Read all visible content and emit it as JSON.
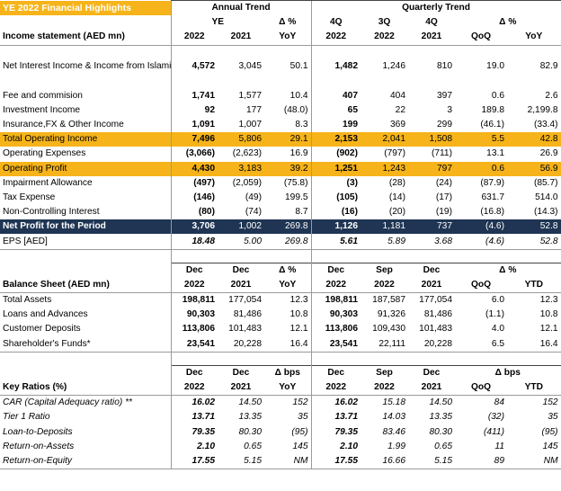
{
  "title": "YE 2022 Financial Highlights",
  "annual_trend": "Annual Trend",
  "quarterly_trend": "Quarterly Trend",
  "ye": "YE",
  "delta_pct": "Δ %",
  "delta_bps": "Δ bps",
  "h_4q": "4Q",
  "h_3q": "3Q",
  "h_dec": "Dec",
  "h_sep": "Sep",
  "h_2022": "2022",
  "h_2021": "2021",
  "h_yoy": "YoY",
  "h_qoq": "QoQ",
  "h_ytd": "YTD",
  "income_header": "Income statement (AED mn)",
  "income_rows": [
    {
      "label": "Net Interest Income & Income from Islamic Financing",
      "v": [
        "4,572",
        "3,045",
        "50.1",
        "1,482",
        "1,246",
        "810",
        "19.0",
        "82.9"
      ]
    },
    {
      "label": "Fee and commision",
      "v": [
        "1,741",
        "1,577",
        "10.4",
        "407",
        "404",
        "397",
        "0.6",
        "2.6"
      ]
    },
    {
      "label": "Investment Income",
      "v": [
        "92",
        "177",
        "(48.0)",
        "65",
        "22",
        "3",
        "189.8",
        "2,199.8"
      ]
    },
    {
      "label": "Insurance,FX & Other Income",
      "v": [
        "1,091",
        "1,007",
        "8.3",
        "199",
        "369",
        "299",
        "(46.1)",
        "(33.4)"
      ]
    },
    {
      "label": "Total Operating Income",
      "v": [
        "7,496",
        "5,806",
        "29.1",
        "2,153",
        "2,041",
        "1,508",
        "5.5",
        "42.8"
      ]
    },
    {
      "label": "Operating Expenses",
      "v": [
        "(3,066)",
        "(2,623)",
        "16.9",
        "(902)",
        "(797)",
        "(711)",
        "13.1",
        "26.9"
      ]
    },
    {
      "label": "Operating Profit",
      "v": [
        "4,430",
        "3,183",
        "39.2",
        "1,251",
        "1,243",
        "797",
        "0.6",
        "56.9"
      ]
    },
    {
      "label": "Impairment Allowance",
      "v": [
        "(497)",
        "(2,059)",
        "(75.8)",
        "(3)",
        "(28)",
        "(24)",
        "(87.9)",
        "(85.7)"
      ]
    },
    {
      "label": "Tax Expense",
      "v": [
        "(146)",
        "(49)",
        "199.5",
        "(105)",
        "(14)",
        "(17)",
        "631.7",
        "514.0"
      ]
    },
    {
      "label": "Non-Controlling Interest",
      "v": [
        "(80)",
        "(74)",
        "8.7",
        "(16)",
        "(20)",
        "(19)",
        "(16.8)",
        "(14.3)"
      ]
    },
    {
      "label": "Net Profit for the Period",
      "v": [
        "3,706",
        "1,002",
        "269.8",
        "1,126",
        "1,181",
        "737",
        "(4.6)",
        "52.8"
      ]
    },
    {
      "label": "EPS [AED]",
      "v": [
        "18.48",
        "5.00",
        "269.8",
        "5.61",
        "5.89",
        "3.68",
        "(4.6)",
        "52.8"
      ]
    }
  ],
  "balance_header": "Balance Sheet (AED mn)",
  "balance_rows": [
    {
      "label": "Total Assets",
      "v": [
        "198,811",
        "177,054",
        "12.3",
        "198,811",
        "187,587",
        "177,054",
        "6.0",
        "12.3"
      ]
    },
    {
      "label": "Loans and Advances",
      "v": [
        "90,303",
        "81,486",
        "10.8",
        "90,303",
        "91,326",
        "81,486",
        "(1.1)",
        "10.8"
      ]
    },
    {
      "label": "Customer Deposits",
      "v": [
        "113,806",
        "101,483",
        "12.1",
        "113,806",
        "109,430",
        "101,483",
        "4.0",
        "12.1"
      ]
    },
    {
      "label": "Shareholder's Funds*",
      "v": [
        "23,541",
        "20,228",
        "16.4",
        "23,541",
        "22,111",
        "20,228",
        "6.5",
        "16.4"
      ]
    }
  ],
  "ratios_header": "Key Ratios (%)",
  "ratio_rows": [
    {
      "label": "CAR (Capital Adequacy ratio) **",
      "v": [
        "16.02",
        "14.50",
        "152",
        "16.02",
        "15.18",
        "14.50",
        "84",
        "152"
      ]
    },
    {
      "label": "Tier 1 Ratio",
      "v": [
        "13.71",
        "13.35",
        "35",
        "13.71",
        "14.03",
        "13.35",
        "(32)",
        "35"
      ]
    },
    {
      "label": "Loan-to-Deposits",
      "v": [
        "79.35",
        "80.30",
        "(95)",
        "79.35",
        "83.46",
        "80.30",
        "(411)",
        "(95)"
      ]
    },
    {
      "label": "Return-on-Assets",
      "v": [
        "2.10",
        "0.65",
        "145",
        "2.10",
        "1.99",
        "0.65",
        "11",
        "145"
      ]
    },
    {
      "label": "Return-on-Equity",
      "v": [
        "17.55",
        "5.15",
        "NM",
        "17.55",
        "16.66",
        "5.15",
        "89",
        "NM"
      ]
    }
  ]
}
